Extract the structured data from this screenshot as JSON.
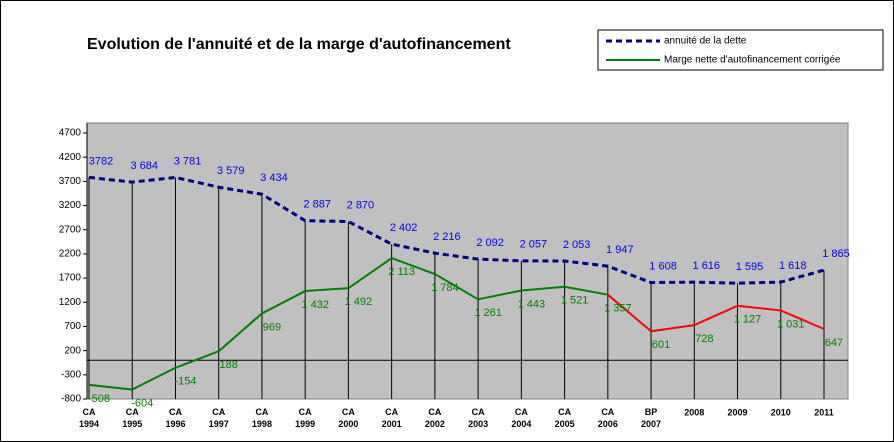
{
  "chart_data": {
    "type": "line",
    "title": "Evolution de l'annuité et de la marge d'autofinancement",
    "categories": [
      "CA 1994",
      "CA 1995",
      "CA 1996",
      "CA 1997",
      "CA 1998",
      "CA 1999",
      "CA 2000",
      "CA 2001",
      "CA 2002",
      "CA 2003",
      "CA 2004",
      "CA 2005",
      "CA 2006",
      "BP 2007",
      "2008",
      "2009",
      "2010",
      "2011"
    ],
    "series": [
      {
        "name": "annuité de la dette",
        "color": "#000080",
        "label_color": "#0000ff",
        "dashed": true,
        "values": [
          3782,
          3684,
          3781,
          3579,
          3434,
          2887,
          2870,
          2402,
          2216,
          2092,
          2057,
          2053,
          1947,
          1608,
          1616,
          1595,
          1618,
          1865
        ],
        "value_labels": [
          "3782",
          "3 684",
          "3 781",
          "3 579",
          "3 434",
          "2 887",
          "2 870",
          "2 402",
          "2 216",
          "2 092",
          "2 057",
          "2 053",
          "1 947",
          "1 608",
          "1 616",
          "1 595",
          "1 618",
          "1 865"
        ]
      },
      {
        "name": "Marge nette d'autofinancement corrigée",
        "color": "#008000",
        "label_color": "#008000",
        "dashed": false,
        "point_colors": [
          "#008000",
          "#008000",
          "#008000",
          "#008000",
          "#008000",
          "#008000",
          "#008000",
          "#008000",
          "#008000",
          "#008000",
          "#008000",
          "#008000",
          "#008000",
          "#ff0000",
          "#ff0000",
          "#ff0000",
          "#ff0000",
          "#ff0000"
        ],
        "values": [
          -508,
          -604,
          -154,
          188,
          969,
          1432,
          1492,
          2113,
          1784,
          1261,
          1443,
          1521,
          1357,
          601,
          728,
          1127,
          1031,
          647
        ],
        "value_labels": [
          "-508",
          "-604",
          "-154",
          "188",
          "969",
          "1 432",
          "1 492",
          "2 113",
          "1 784",
          "1 261",
          "1 443",
          "1 521",
          "1 357",
          "601",
          "728",
          "1 127",
          "1 031",
          "647"
        ]
      }
    ],
    "ylim": [
      -800,
      4700
    ],
    "yticks": [
      -800,
      -300,
      200,
      700,
      1200,
      1700,
      2200,
      2700,
      3200,
      3700,
      4200,
      4700
    ],
    "background": "#c0c0c0"
  }
}
